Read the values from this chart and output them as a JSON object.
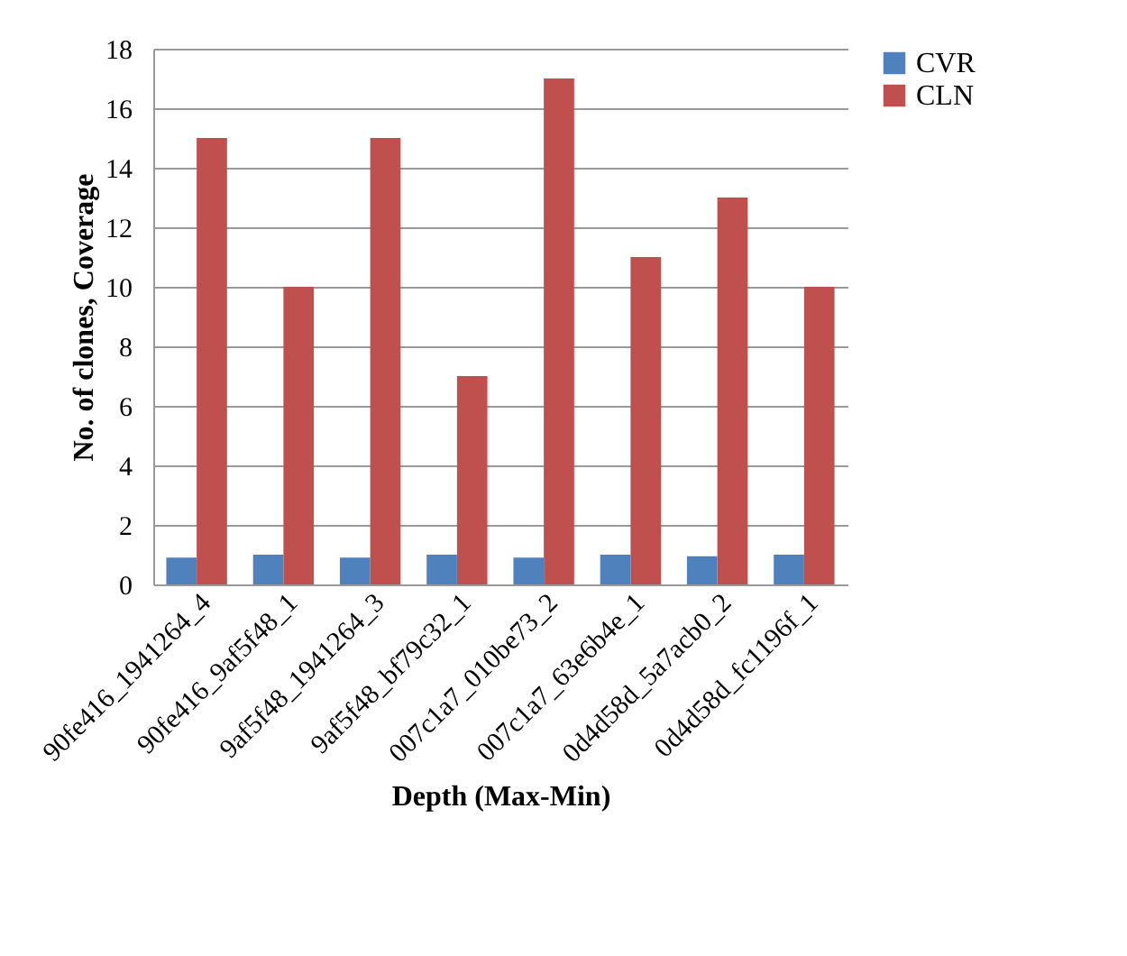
{
  "chart_data": {
    "type": "bar",
    "xlabel": "Depth (Max-Min)",
    "ylabel": "No. of clones, Coverage",
    "categories": [
      "90fe416_1941264_4",
      "90fe416_9af5f48_1",
      "9af5f48_1941264_3",
      "9af5f48_bf79c32_1",
      "007c1a7_010be73_2",
      "007c1a7_63e6b4e_1",
      "0d4d58d_5a7acb0_2",
      "0d4d58d_fc1196f_1"
    ],
    "series": [
      {
        "name": "CVR",
        "color": "#4f81bd",
        "values": [
          0.9,
          1,
          0.9,
          1,
          0.9,
          1,
          0.95,
          1
        ]
      },
      {
        "name": "CLN",
        "color": "#c0504d",
        "values": [
          15,
          10,
          15,
          7,
          17,
          11,
          13,
          10
        ]
      }
    ],
    "ylim": [
      0,
      18
    ],
    "yticks": [
      0,
      2,
      4,
      6,
      8,
      10,
      12,
      14,
      16,
      18
    ],
    "grid": "y",
    "legend": "right"
  }
}
